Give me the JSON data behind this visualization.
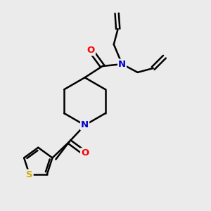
{
  "bg_color": "#ebebeb",
  "atom_colors": {
    "C": "#000000",
    "N": "#0000cc",
    "O": "#ff0000",
    "S": "#ccaa00"
  },
  "bond_color": "#000000",
  "bond_width": 1.8,
  "figsize": [
    3.0,
    3.0
  ],
  "dpi": 100
}
